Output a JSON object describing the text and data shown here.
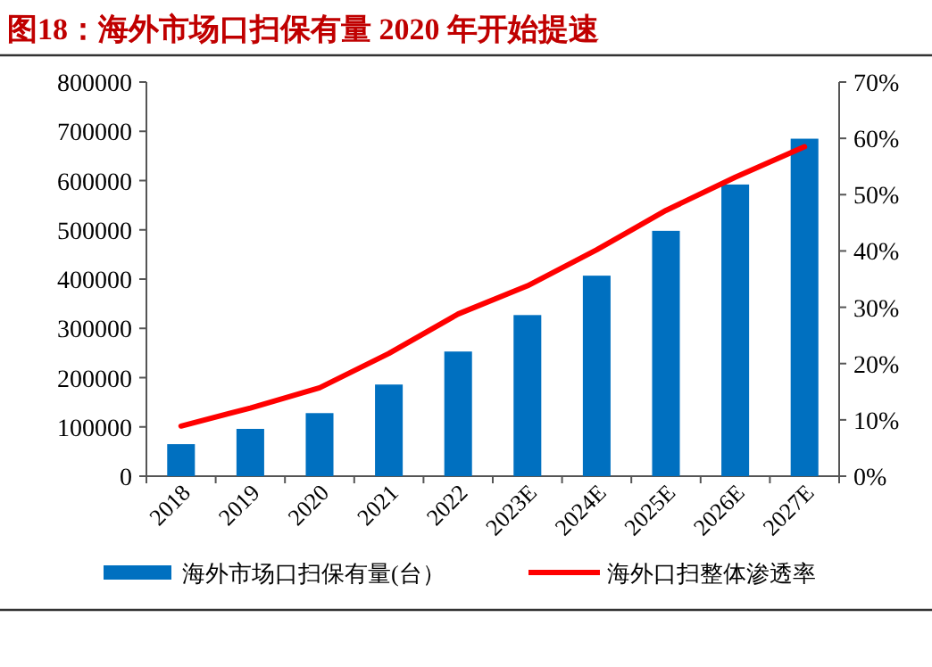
{
  "chart_data": {
    "type": "bar",
    "title": "图18：海外市场口扫保有量 2020 年开始提速",
    "categories": [
      "2018",
      "2019",
      "2020",
      "2021",
      "2022",
      "2023E",
      "2024E",
      "2025E",
      "2026E",
      "2027E"
    ],
    "series": [
      {
        "name": "海外市场口扫保有量(台）",
        "color": "#0070c0",
        "values": [
          65000,
          96000,
          128000,
          186000,
          253000,
          327000,
          407000,
          498000,
          592000,
          685000
        ]
      },
      {
        "name": "海外口扫整体渗透率",
        "type": "line",
        "axis": "y2",
        "color": "#ff0000",
        "values": [
          8.9,
          12.1,
          15.7,
          21.8,
          28.8,
          33.8,
          40.2,
          47.2,
          53.1,
          58.5
        ]
      }
    ],
    "ylim": [
      0,
      800000
    ],
    "yticks": [
      0,
      100000,
      200000,
      300000,
      400000,
      500000,
      600000,
      700000,
      800000
    ],
    "y2lim": [
      0,
      70
    ],
    "y2ticks": [
      {
        "value": 0,
        "label": "0%"
      },
      {
        "value": 10,
        "label": "10%"
      },
      {
        "value": 20,
        "label": "20%"
      },
      {
        "value": 30,
        "label": "30%"
      },
      {
        "value": 40,
        "label": "40%"
      },
      {
        "value": 50,
        "label": "50%"
      },
      {
        "value": 60,
        "label": "60%"
      },
      {
        "value": 70,
        "label": "70%"
      }
    ],
    "legend": "bottom"
  }
}
